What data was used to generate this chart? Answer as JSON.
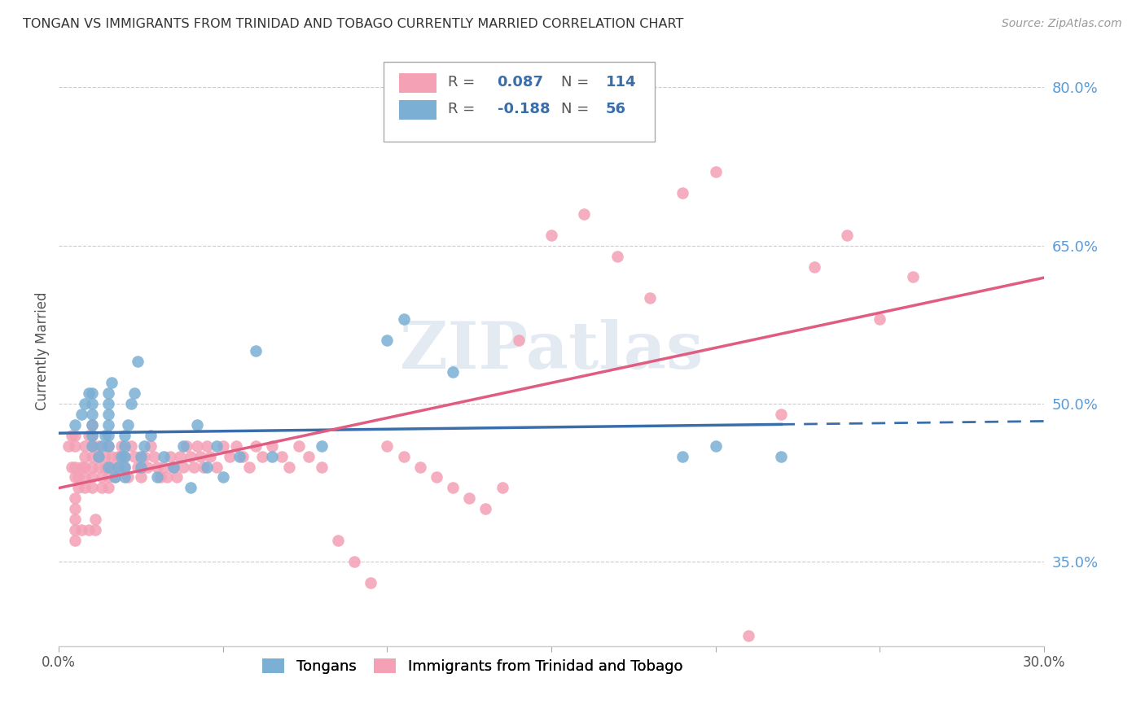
{
  "title": "TONGAN VS IMMIGRANTS FROM TRINIDAD AND TOBAGO CURRENTLY MARRIED CORRELATION CHART",
  "source": "Source: ZipAtlas.com",
  "ylabel": "Currently Married",
  "xmin": 0.0,
  "xmax": 0.3,
  "ymin": 0.27,
  "ymax": 0.83,
  "yticks": [
    0.35,
    0.5,
    0.65,
    0.8
  ],
  "ytick_labels": [
    "35.0%",
    "50.0%",
    "65.0%",
    "80.0%"
  ],
  "xticks": [
    0.0,
    0.05,
    0.1,
    0.15,
    0.2,
    0.25,
    0.3
  ],
  "xtick_labels": [
    "0.0%",
    "",
    "",
    "",
    "",
    "",
    "30.0%"
  ],
  "blue_R": -0.188,
  "blue_N": 56,
  "pink_R": 0.087,
  "pink_N": 114,
  "blue_color": "#7bafd4",
  "pink_color": "#f4a0b5",
  "blue_line_color": "#3a6eaa",
  "pink_line_color": "#e05c80",
  "legend_label_blue": "Tongans",
  "legend_label_pink": "Immigrants from Trinidad and Tobago",
  "watermark": "ZIPatlas",
  "blue_points_x": [
    0.005,
    0.007,
    0.008,
    0.009,
    0.01,
    0.01,
    0.01,
    0.01,
    0.01,
    0.01,
    0.012,
    0.013,
    0.014,
    0.015,
    0.015,
    0.015,
    0.015,
    0.015,
    0.015,
    0.015,
    0.016,
    0.017,
    0.018,
    0.019,
    0.02,
    0.02,
    0.02,
    0.02,
    0.02,
    0.021,
    0.022,
    0.023,
    0.024,
    0.025,
    0.025,
    0.026,
    0.028,
    0.03,
    0.032,
    0.035,
    0.038,
    0.04,
    0.042,
    0.045,
    0.048,
    0.05,
    0.055,
    0.06,
    0.065,
    0.08,
    0.1,
    0.105,
    0.12,
    0.19,
    0.2,
    0.22
  ],
  "blue_points_y": [
    0.48,
    0.49,
    0.5,
    0.51,
    0.46,
    0.47,
    0.48,
    0.49,
    0.5,
    0.51,
    0.45,
    0.46,
    0.47,
    0.44,
    0.46,
    0.47,
    0.48,
    0.49,
    0.5,
    0.51,
    0.52,
    0.43,
    0.44,
    0.45,
    0.43,
    0.44,
    0.45,
    0.46,
    0.47,
    0.48,
    0.5,
    0.51,
    0.54,
    0.44,
    0.45,
    0.46,
    0.47,
    0.43,
    0.45,
    0.44,
    0.46,
    0.42,
    0.48,
    0.44,
    0.46,
    0.43,
    0.45,
    0.55,
    0.45,
    0.46,
    0.56,
    0.58,
    0.53,
    0.45,
    0.46,
    0.45
  ],
  "pink_points_x": [
    0.003,
    0.004,
    0.004,
    0.005,
    0.005,
    0.005,
    0.005,
    0.005,
    0.005,
    0.005,
    0.005,
    0.005,
    0.006,
    0.006,
    0.007,
    0.007,
    0.008,
    0.008,
    0.008,
    0.008,
    0.008,
    0.009,
    0.009,
    0.01,
    0.01,
    0.01,
    0.01,
    0.01,
    0.01,
    0.01,
    0.011,
    0.011,
    0.012,
    0.012,
    0.012,
    0.013,
    0.013,
    0.014,
    0.014,
    0.015,
    0.015,
    0.015,
    0.016,
    0.016,
    0.017,
    0.018,
    0.018,
    0.019,
    0.02,
    0.02,
    0.021,
    0.022,
    0.023,
    0.024,
    0.025,
    0.026,
    0.027,
    0.028,
    0.029,
    0.03,
    0.031,
    0.032,
    0.033,
    0.034,
    0.035,
    0.036,
    0.037,
    0.038,
    0.039,
    0.04,
    0.041,
    0.042,
    0.043,
    0.044,
    0.045,
    0.046,
    0.048,
    0.05,
    0.052,
    0.054,
    0.056,
    0.058,
    0.06,
    0.062,
    0.065,
    0.068,
    0.07,
    0.073,
    0.076,
    0.08,
    0.085,
    0.09,
    0.095,
    0.1,
    0.105,
    0.11,
    0.115,
    0.12,
    0.125,
    0.13,
    0.135,
    0.14,
    0.15,
    0.16,
    0.17,
    0.18,
    0.19,
    0.2,
    0.21,
    0.22,
    0.23,
    0.24,
    0.25,
    0.26
  ],
  "pink_points_y": [
    0.46,
    0.47,
    0.44,
    0.46,
    0.47,
    0.43,
    0.44,
    0.4,
    0.41,
    0.39,
    0.38,
    0.37,
    0.42,
    0.43,
    0.44,
    0.38,
    0.42,
    0.43,
    0.44,
    0.45,
    0.46,
    0.47,
    0.38,
    0.44,
    0.45,
    0.46,
    0.47,
    0.48,
    0.43,
    0.42,
    0.39,
    0.38,
    0.44,
    0.45,
    0.46,
    0.43,
    0.42,
    0.44,
    0.45,
    0.43,
    0.42,
    0.46,
    0.45,
    0.44,
    0.43,
    0.45,
    0.44,
    0.46,
    0.45,
    0.44,
    0.43,
    0.46,
    0.45,
    0.44,
    0.43,
    0.45,
    0.44,
    0.46,
    0.45,
    0.44,
    0.43,
    0.44,
    0.43,
    0.45,
    0.44,
    0.43,
    0.45,
    0.44,
    0.46,
    0.45,
    0.44,
    0.46,
    0.45,
    0.44,
    0.46,
    0.45,
    0.44,
    0.46,
    0.45,
    0.46,
    0.45,
    0.44,
    0.46,
    0.45,
    0.46,
    0.45,
    0.44,
    0.46,
    0.45,
    0.44,
    0.37,
    0.35,
    0.33,
    0.46,
    0.45,
    0.44,
    0.43,
    0.42,
    0.41,
    0.4,
    0.42,
    0.56,
    0.66,
    0.68,
    0.64,
    0.6,
    0.7,
    0.72,
    0.28,
    0.49,
    0.63,
    0.66,
    0.58,
    0.62
  ]
}
